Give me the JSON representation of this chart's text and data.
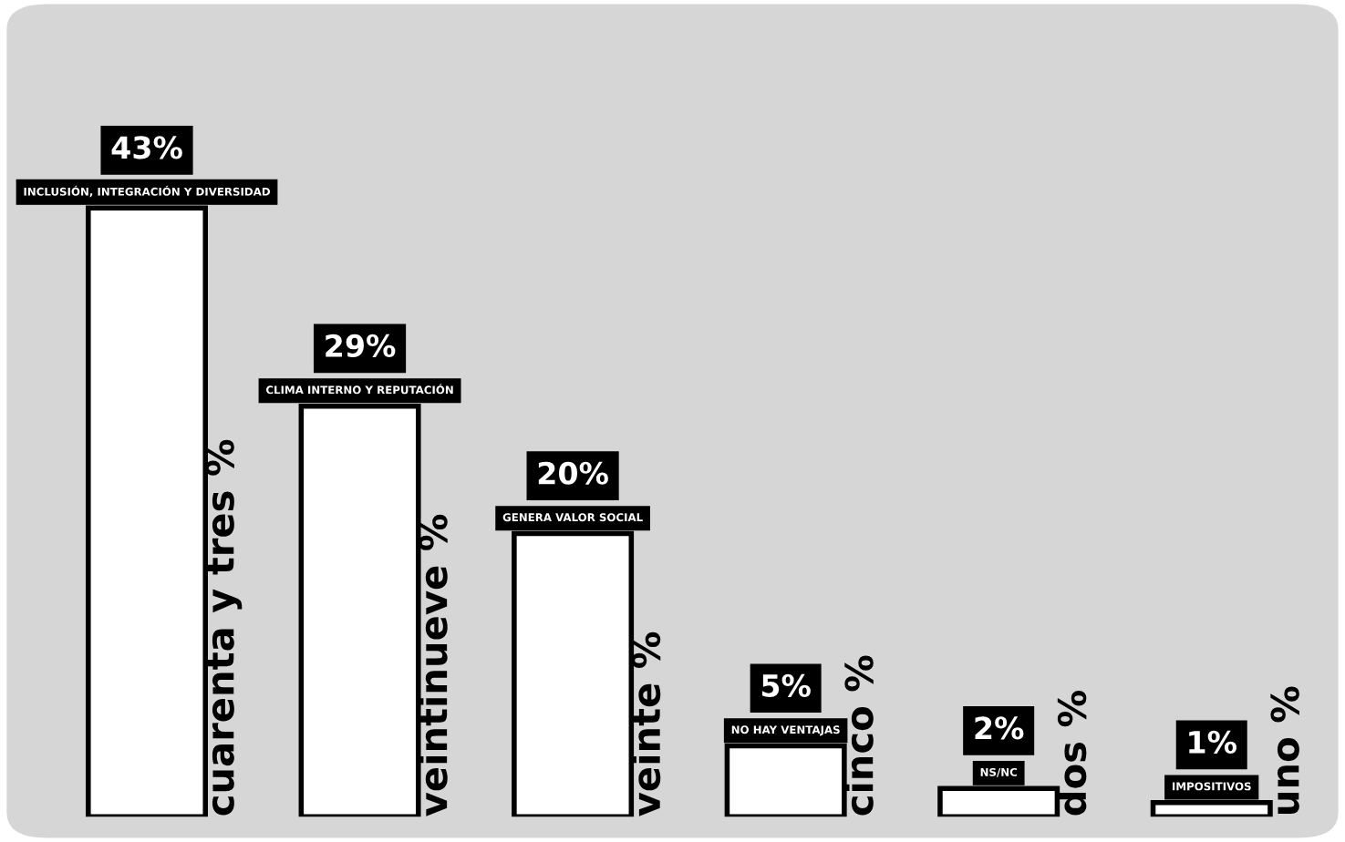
{
  "chart_data": {
    "type": "bar",
    "categories": [
      "INCLUSIÓN, INTEGRACIÓN Y DIVERSIDAD",
      "CLIMA INTERNO Y REPUTACIÓN",
      "GENERA VALOR SOCIAL",
      "NO HAY VENTAJAS",
      "NS/NC",
      "IMPOSITIVOS"
    ],
    "values": [
      43,
      29,
      20,
      5,
      2,
      1
    ],
    "value_labels": [
      "43%",
      "29%",
      "20%",
      "5%",
      "2%",
      "1%"
    ],
    "color": "#ffffff",
    "annotations": [
      "cuarenta y tres %",
      "veintinueve %",
      "veinte %",
      "cinco %",
      "dos %",
      "uno %"
    ]
  }
}
